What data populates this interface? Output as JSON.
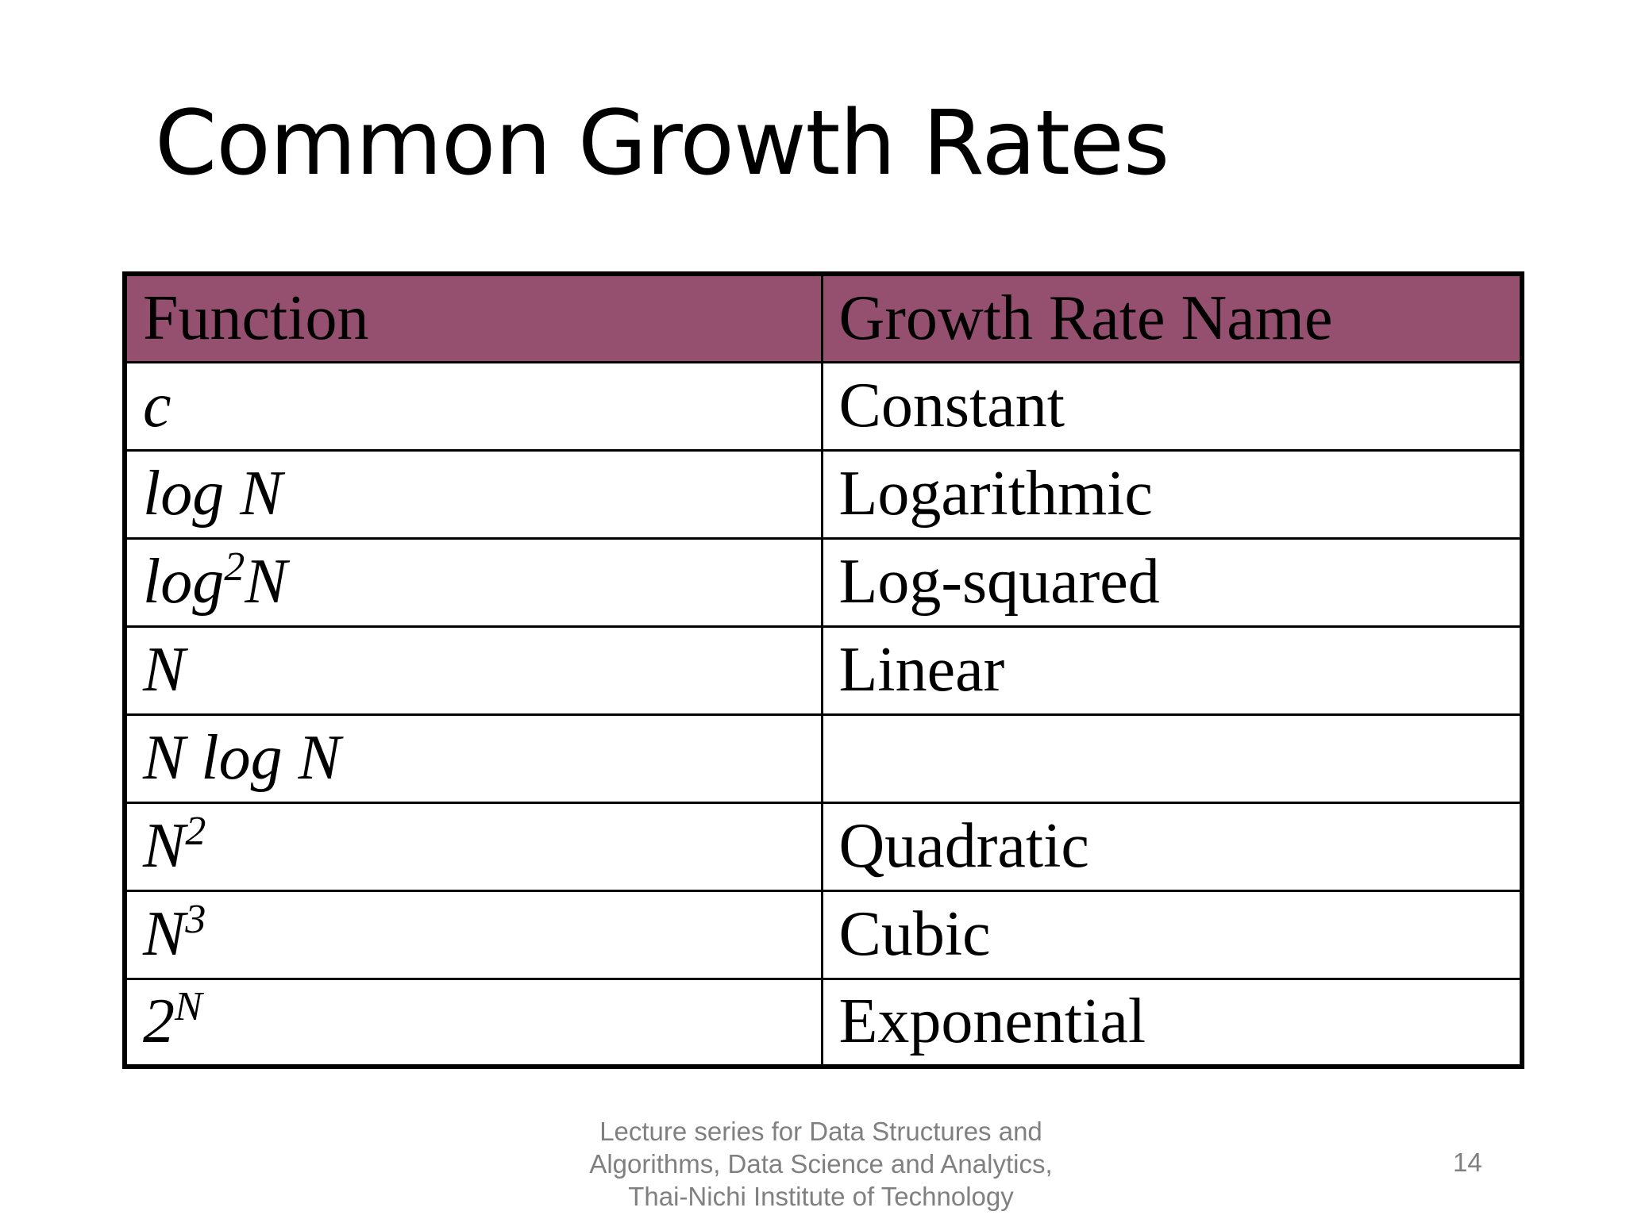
{
  "slide": {
    "title": "Common Growth Rates",
    "page_number": "14"
  },
  "table": {
    "headers": [
      "Function",
      "Growth Rate Name"
    ],
    "rows": [
      {
        "function_base": "c",
        "function_sup": "",
        "function_rest": "",
        "name": "Constant"
      },
      {
        "function_base": "log N",
        "function_sup": "",
        "function_rest": "",
        "name": "Logarithmic"
      },
      {
        "function_base": "log",
        "function_sup": "2",
        "function_rest": "N",
        "name": "Log-squared"
      },
      {
        "function_base": "N",
        "function_sup": "",
        "function_rest": "",
        "name": "Linear"
      },
      {
        "function_base": "N log N",
        "function_sup": "",
        "function_rest": "",
        "name": ""
      },
      {
        "function_base": "N",
        "function_sup": "2",
        "function_rest": "",
        "name": "Quadratic"
      },
      {
        "function_base": "N",
        "function_sup": "3",
        "function_rest": "",
        "name": "Cubic"
      },
      {
        "function_base": "2",
        "function_sup": "N",
        "function_rest": "",
        "name": "Exponential"
      }
    ],
    "header_color": "#955070"
  },
  "footer": {
    "lines": [
      "Lecture series for Data Structures and",
      "Algorithms, Data Science and Analytics,",
      "Thai-Nichi Institute of Technology"
    ],
    "text_color": "#808080"
  }
}
